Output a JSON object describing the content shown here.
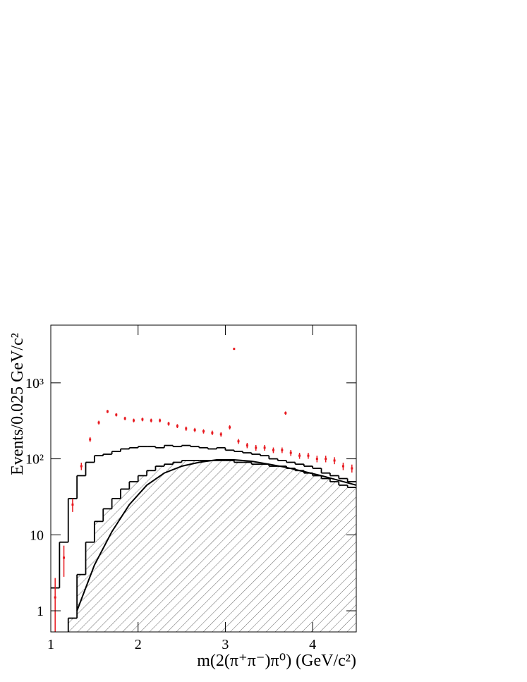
{
  "chart_data": {
    "type": "layered",
    "log_y": true,
    "xlim": [
      1,
      4.5
    ],
    "ylim": [
      0.527,
      5750
    ],
    "xticks": [
      1,
      2,
      3,
      4
    ],
    "yticks": [
      1,
      10,
      {
        "value": 100,
        "label": "10²"
      },
      {
        "value": 1000,
        "label": "10³"
      }
    ],
    "x_label": "m(2(π⁺π⁻)π⁰) (GeV/c²)",
    "y_label": "Events/0.025 GeV/c²",
    "series": [
      {
        "type": "step_hatched",
        "color": "#000000",
        "bins": [
          1.0,
          1.1,
          1.2,
          1.3,
          1.4,
          1.5,
          1.6,
          1.7,
          1.8,
          1.9,
          2.0,
          2.1,
          2.2,
          2.3,
          2.4,
          2.5,
          2.6,
          2.7,
          2.8,
          2.9,
          3.0,
          3.1,
          3.2,
          3.3,
          3.4,
          3.5,
          3.6,
          3.7,
          3.8,
          3.9,
          4.0,
          4.1,
          4.2,
          4.3,
          4.4,
          4.5
        ],
        "values": [
          0,
          0,
          0.8,
          3,
          8,
          15,
          22,
          30,
          40,
          50,
          60,
          70,
          80,
          85,
          90,
          95,
          95,
          95,
          95,
          95,
          95,
          90,
          90,
          85,
          85,
          80,
          80,
          75,
          70,
          65,
          60,
          55,
          50,
          45,
          42
        ]
      },
      {
        "type": "step",
        "color": "#000000",
        "bins": [
          1.0,
          1.1,
          1.2,
          1.3,
          1.4,
          1.5,
          1.6,
          1.7,
          1.8,
          1.9,
          2.0,
          2.1,
          2.2,
          2.3,
          2.4,
          2.5,
          2.6,
          2.7,
          2.8,
          2.9,
          3.0,
          3.1,
          3.2,
          3.3,
          3.4,
          3.5,
          3.6,
          3.7,
          3.8,
          3.9,
          4.0,
          4.1,
          4.2,
          4.3,
          4.4,
          4.5
        ],
        "values": [
          2,
          8,
          30,
          60,
          90,
          110,
          115,
          125,
          135,
          140,
          145,
          145,
          140,
          150,
          145,
          150,
          145,
          140,
          135,
          140,
          130,
          125,
          120,
          115,
          110,
          100,
          95,
          90,
          85,
          80,
          75,
          65,
          60,
          55,
          50
        ]
      },
      {
        "type": "line",
        "color": "#000000",
        "x": [
          1.3,
          1.5,
          1.7,
          1.9,
          2.1,
          2.3,
          2.5,
          2.7,
          2.9,
          3.1,
          3.3,
          3.5,
          3.7,
          3.9,
          4.1,
          4.3,
          4.5
        ],
        "values": [
          1,
          4,
          11,
          25,
          45,
          65,
          80,
          90,
          97,
          97,
          93,
          85,
          77,
          68,
          60,
          52,
          45
        ]
      },
      {
        "type": "errorbar",
        "color": "#e8191f",
        "x": [
          1.05,
          1.15,
          1.25,
          1.35,
          1.45,
          1.55,
          1.65,
          1.75,
          1.85,
          1.95,
          2.05,
          2.15,
          2.25,
          2.35,
          2.45,
          2.55,
          2.65,
          2.75,
          2.85,
          2.95,
          3.05,
          3.1,
          3.15,
          3.25,
          3.35,
          3.45,
          3.55,
          3.65,
          3.69,
          3.75,
          3.85,
          3.95,
          4.05,
          4.15,
          4.25,
          4.35,
          4.45
        ],
        "values": [
          1.5,
          5,
          25,
          80,
          180,
          300,
          420,
          380,
          340,
          320,
          330,
          320,
          320,
          290,
          270,
          250,
          240,
          230,
          220,
          210,
          260,
          2800,
          170,
          150,
          140,
          140,
          130,
          130,
          400,
          120,
          110,
          110,
          100,
          100,
          95,
          80,
          75
        ],
        "errors": [
          1.2,
          2.2,
          5,
          9,
          13,
          17,
          20,
          19,
          18,
          18,
          18,
          18,
          18,
          17,
          16,
          16,
          15,
          15,
          15,
          14,
          16,
          53,
          13,
          12,
          12,
          12,
          11,
          11,
          20,
          11,
          10,
          10,
          10,
          10,
          10,
          9,
          9
        ]
      }
    ]
  }
}
